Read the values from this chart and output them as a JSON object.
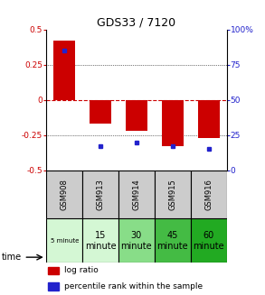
{
  "title": "GDS33 / 7120",
  "categories": [
    "GSM908",
    "GSM913",
    "GSM914",
    "GSM915",
    "GSM916"
  ],
  "log_ratio": [
    0.42,
    -0.17,
    -0.22,
    -0.33,
    -0.27
  ],
  "percentile": [
    85,
    17,
    20,
    17,
    15
  ],
  "ylim_left": [
    -0.5,
    0.5
  ],
  "ylim_right": [
    0,
    100
  ],
  "yticks_left": [
    -0.5,
    -0.25,
    0,
    0.25,
    0.5
  ],
  "yticks_right": [
    0,
    25,
    50,
    75,
    100
  ],
  "bar_color": "#cc0000",
  "dot_color": "#2222cc",
  "zero_line_color": "#cc0000",
  "grid_color": "#000000",
  "time_labels": [
    "5 minute",
    "15\nminute",
    "30\nminute",
    "45\nminute",
    "60\nminute"
  ],
  "time_colors": [
    "#d4f7d4",
    "#d4f7d4",
    "#88dd88",
    "#44bb44",
    "#22aa22"
  ],
  "sample_bg_color": "#cccccc",
  "bg_color": "#ffffff",
  "legend_log_ratio": "log ratio",
  "legend_percentile": "percentile rank within the sample",
  "time_label": "time"
}
